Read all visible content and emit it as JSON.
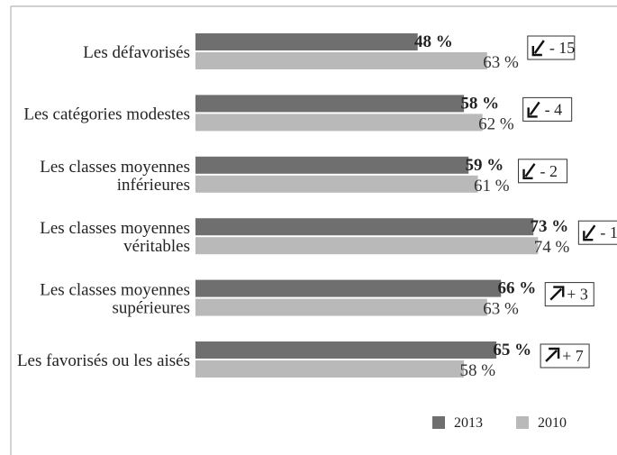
{
  "chart_data": {
    "type": "bar",
    "orientation": "horizontal",
    "categories": [
      [
        "Les défavorisés"
      ],
      [
        "Les catégories modestes"
      ],
      [
        "Les classes moyennes",
        "inférieures"
      ],
      [
        "Les classes moyennes",
        "véritables"
      ],
      [
        "Les classes moyennes",
        "supérieures"
      ],
      [
        "Les favorisés ou les aisés"
      ]
    ],
    "series": [
      {
        "name": "2013",
        "color": "#6f6f6f",
        "values": [
          48,
          58,
          59,
          73,
          66,
          65
        ]
      },
      {
        "name": "2010",
        "color": "#b9b9b9",
        "values": [
          63,
          62,
          61,
          74,
          63,
          58
        ]
      }
    ],
    "value_labels": {
      "2013": [
        "48 %",
        "58 %",
        "59 %",
        "73 %",
        "66 %",
        "65 %"
      ],
      "2010": [
        "63 %",
        "62 %",
        "61 %",
        "74 %",
        "63 %",
        "58 %"
      ]
    },
    "changes": [
      {
        "direction": "down",
        "icon": "arrow-down-left-icon",
        "text": "- 15"
      },
      {
        "direction": "down",
        "icon": "arrow-down-left-icon",
        "text": "- 4"
      },
      {
        "direction": "down",
        "icon": "arrow-down-left-icon",
        "text": "- 2"
      },
      {
        "direction": "down",
        "icon": "arrow-down-left-icon",
        "text": "- 1"
      },
      {
        "direction": "up",
        "icon": "arrow-up-right-icon",
        "text": "+ 3"
      },
      {
        "direction": "up",
        "icon": "arrow-up-right-icon",
        "text": "+ 7"
      }
    ],
    "xlim": [
      0,
      100
    ],
    "grid": false,
    "legend": {
      "placement": "bottom-right",
      "entries": [
        "2013",
        "2010"
      ]
    }
  }
}
